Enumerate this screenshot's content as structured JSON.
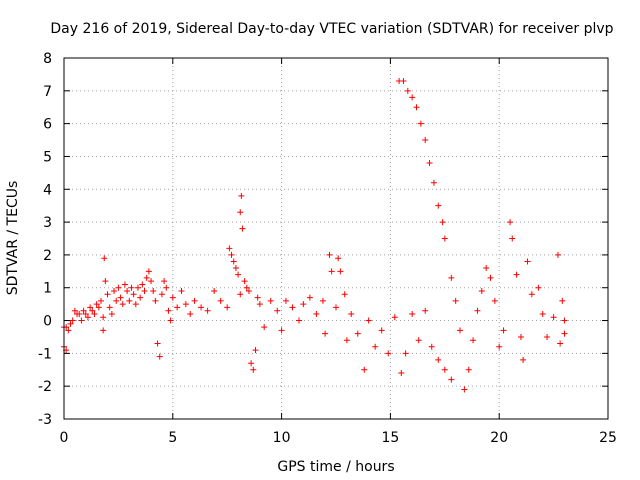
{
  "chart_data": {
    "type": "scatter",
    "title": "Day 216 of 2019, Sidereal Day-to-day VTEC variation (SDTVAR) for receiver plvp",
    "xlabel": "GPS time / hours",
    "ylabel": "SDTVAR / TECUs",
    "xlim": [
      0,
      25
    ],
    "ylim": [
      -3,
      8
    ],
    "xticks": [
      "0",
      "5",
      "10",
      "15",
      "20",
      "25"
    ],
    "yticks": [
      "-3",
      "-2",
      "-1",
      "0",
      "1",
      "2",
      "3",
      "4",
      "5",
      "6",
      "7",
      "8"
    ],
    "grid": true,
    "marker": "plus",
    "color": "#ff0000",
    "series": [
      {
        "name": "SDTVAR",
        "points": [
          [
            0.0,
            -0.2
          ],
          [
            0.0,
            -0.8
          ],
          [
            0.1,
            -0.9
          ],
          [
            0.1,
            -0.2
          ],
          [
            0.2,
            -0.3
          ],
          [
            0.3,
            -0.1
          ],
          [
            0.4,
            0.0
          ],
          [
            0.5,
            0.3
          ],
          [
            0.6,
            0.2
          ],
          [
            0.7,
            0.2
          ],
          [
            0.8,
            0.0
          ],
          [
            0.9,
            0.3
          ],
          [
            1.0,
            0.2
          ],
          [
            1.1,
            0.1
          ],
          [
            1.2,
            0.4
          ],
          [
            1.3,
            0.3
          ],
          [
            1.4,
            0.2
          ],
          [
            1.5,
            0.5
          ],
          [
            1.6,
            0.4
          ],
          [
            1.7,
            0.6
          ],
          [
            1.8,
            -0.3
          ],
          [
            1.8,
            0.1
          ],
          [
            1.85,
            1.9
          ],
          [
            1.9,
            1.2
          ],
          [
            2.0,
            0.8
          ],
          [
            2.1,
            0.4
          ],
          [
            2.2,
            0.2
          ],
          [
            2.3,
            0.9
          ],
          [
            2.4,
            0.6
          ],
          [
            2.5,
            1.0
          ],
          [
            2.6,
            0.7
          ],
          [
            2.7,
            0.5
          ],
          [
            2.8,
            1.1
          ],
          [
            2.9,
            0.9
          ],
          [
            3.0,
            0.6
          ],
          [
            3.1,
            1.0
          ],
          [
            3.2,
            0.8
          ],
          [
            3.3,
            0.5
          ],
          [
            3.4,
            1.0
          ],
          [
            3.5,
            0.7
          ],
          [
            3.6,
            1.1
          ],
          [
            3.7,
            0.9
          ],
          [
            3.8,
            1.3
          ],
          [
            3.9,
            1.5
          ],
          [
            4.0,
            1.2
          ],
          [
            4.1,
            0.9
          ],
          [
            4.2,
            0.6
          ],
          [
            4.3,
            -0.7
          ],
          [
            4.4,
            -1.1
          ],
          [
            4.5,
            0.8
          ],
          [
            4.6,
            1.2
          ],
          [
            4.7,
            1.0
          ],
          [
            4.8,
            0.3
          ],
          [
            4.9,
            0.0
          ],
          [
            5.0,
            0.7
          ],
          [
            5.2,
            0.4
          ],
          [
            5.4,
            0.9
          ],
          [
            5.6,
            0.5
          ],
          [
            5.8,
            0.2
          ],
          [
            6.0,
            0.6
          ],
          [
            6.3,
            0.4
          ],
          [
            6.6,
            0.3
          ],
          [
            6.9,
            0.9
          ],
          [
            7.2,
            0.6
          ],
          [
            7.5,
            0.4
          ],
          [
            7.6,
            2.2
          ],
          [
            7.7,
            2.0
          ],
          [
            7.8,
            1.8
          ],
          [
            7.9,
            1.6
          ],
          [
            8.0,
            1.4
          ],
          [
            8.1,
            0.8
          ],
          [
            8.1,
            3.3
          ],
          [
            8.15,
            3.8
          ],
          [
            8.2,
            2.8
          ],
          [
            8.3,
            1.2
          ],
          [
            8.4,
            1.0
          ],
          [
            8.5,
            0.9
          ],
          [
            8.6,
            -1.3
          ],
          [
            8.7,
            -1.5
          ],
          [
            8.8,
            -0.9
          ],
          [
            8.9,
            0.7
          ],
          [
            9.0,
            0.5
          ],
          [
            9.2,
            -0.2
          ],
          [
            9.5,
            0.6
          ],
          [
            9.8,
            0.3
          ],
          [
            10.0,
            -0.3
          ],
          [
            10.2,
            0.6
          ],
          [
            10.5,
            0.4
          ],
          [
            10.8,
            0.0
          ],
          [
            11.0,
            0.5
          ],
          [
            11.3,
            0.7
          ],
          [
            11.6,
            0.2
          ],
          [
            11.9,
            0.6
          ],
          [
            12.0,
            -0.4
          ],
          [
            12.2,
            2.0
          ],
          [
            12.3,
            1.5
          ],
          [
            12.5,
            0.4
          ],
          [
            12.6,
            1.9
          ],
          [
            12.7,
            1.5
          ],
          [
            12.9,
            0.8
          ],
          [
            13.0,
            -0.6
          ],
          [
            13.2,
            0.2
          ],
          [
            13.5,
            -0.4
          ],
          [
            13.8,
            -1.5
          ],
          [
            14.0,
            0.0
          ],
          [
            14.3,
            -0.8
          ],
          [
            14.6,
            -0.3
          ],
          [
            14.9,
            -1.0
          ],
          [
            15.2,
            0.1
          ],
          [
            15.4,
            7.3
          ],
          [
            15.6,
            7.3
          ],
          [
            15.8,
            7.0
          ],
          [
            16.0,
            6.8
          ],
          [
            16.2,
            6.5
          ],
          [
            16.4,
            6.0
          ],
          [
            16.6,
            5.5
          ],
          [
            16.8,
            4.8
          ],
          [
            17.0,
            4.2
          ],
          [
            17.2,
            3.5
          ],
          [
            17.4,
            3.0
          ],
          [
            17.5,
            2.5
          ],
          [
            15.5,
            -1.6
          ],
          [
            15.7,
            -1.0
          ],
          [
            16.0,
            0.2
          ],
          [
            16.3,
            -0.6
          ],
          [
            16.6,
            0.3
          ],
          [
            16.9,
            -0.8
          ],
          [
            17.2,
            -1.2
          ],
          [
            17.5,
            -1.5
          ],
          [
            17.8,
            -1.8
          ],
          [
            17.8,
            1.3
          ],
          [
            18.0,
            0.6
          ],
          [
            18.2,
            -0.3
          ],
          [
            18.4,
            -2.1
          ],
          [
            18.6,
            -1.5
          ],
          [
            18.8,
            -0.6
          ],
          [
            19.0,
            0.3
          ],
          [
            19.2,
            0.9
          ],
          [
            19.4,
            1.6
          ],
          [
            19.6,
            1.3
          ],
          [
            19.8,
            0.6
          ],
          [
            20.0,
            -0.8
          ],
          [
            20.2,
            -0.3
          ],
          [
            20.5,
            3.0
          ],
          [
            20.6,
            2.5
          ],
          [
            20.8,
            1.4
          ],
          [
            21.0,
            -0.5
          ],
          [
            21.1,
            -1.2
          ],
          [
            21.3,
            1.8
          ],
          [
            21.5,
            0.8
          ],
          [
            21.8,
            1.0
          ],
          [
            22.0,
            0.2
          ],
          [
            22.2,
            -0.5
          ],
          [
            22.5,
            0.1
          ],
          [
            22.7,
            2.0
          ],
          [
            22.8,
            -0.7
          ],
          [
            22.9,
            0.6
          ],
          [
            23.0,
            -0.4
          ],
          [
            23.0,
            0.0
          ]
        ]
      }
    ]
  }
}
